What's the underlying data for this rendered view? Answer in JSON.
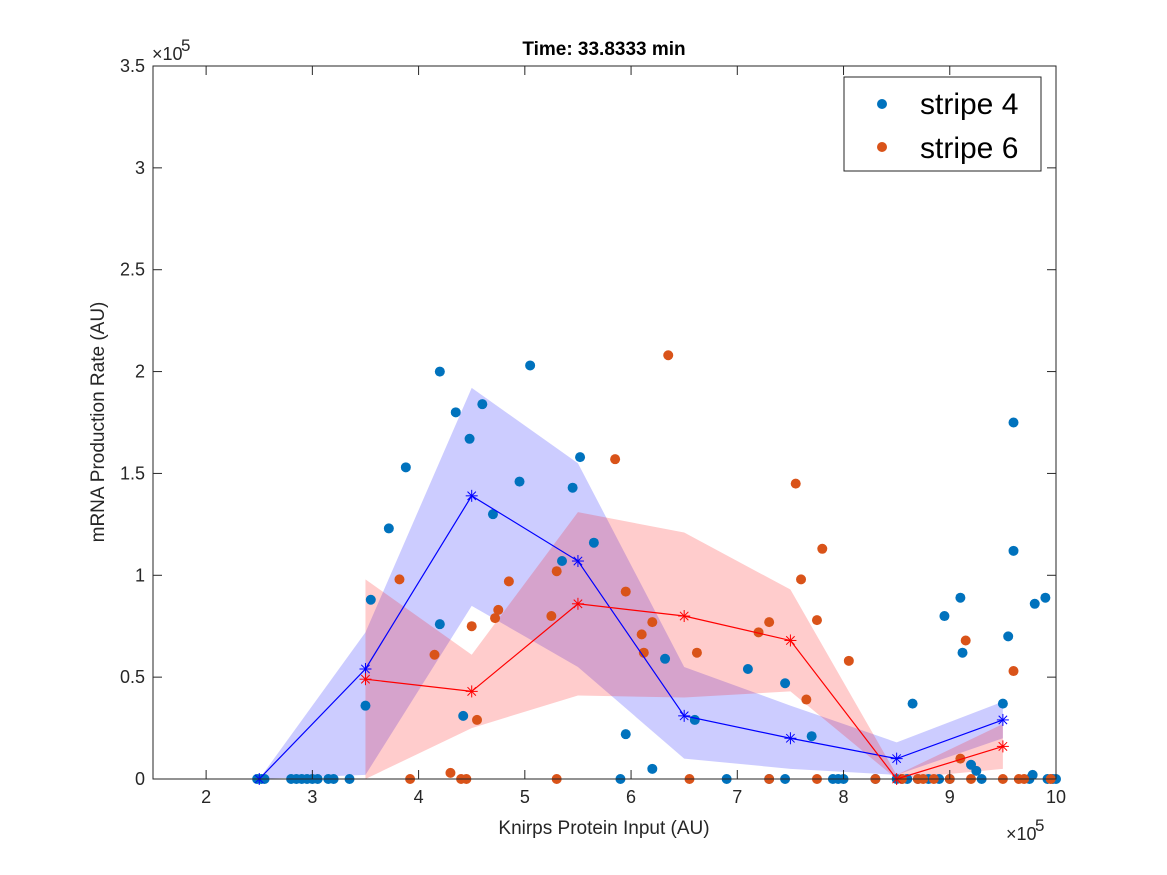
{
  "chart_data": {
    "type": "scatter",
    "title": "Time: 33.8333 min",
    "xlabel": "Knirps Protein Input (AU)",
    "ylabel": "mRNA Production Rate (AU)",
    "x_multiplier_label": "×10",
    "x_multiplier_exp": "5",
    "y_multiplier_label": "×10",
    "y_multiplier_exp": "5",
    "xlim": [
      1.5,
      10
    ],
    "ylim": [
      0,
      3.5
    ],
    "x_ticks": [
      2,
      3,
      4,
      5,
      6,
      7,
      8,
      9,
      10
    ],
    "x_tick_labels": [
      "2",
      "3",
      "4",
      "5",
      "6",
      "7",
      "8",
      "9",
      "10"
    ],
    "y_ticks": [
      0,
      0.5,
      1,
      1.5,
      2,
      2.5,
      3,
      3.5
    ],
    "y_tick_labels": [
      "0",
      "0.5",
      "1",
      "1.5",
      "2",
      "2.5",
      "3",
      "3.5"
    ],
    "legend": {
      "position": "top-right",
      "entries": [
        "stripe 4",
        "stripe 6"
      ]
    },
    "grid": false,
    "series": [
      {
        "name": "stripe 4",
        "color": "#0072BD",
        "points": [
          [
            2.48,
            0
          ],
          [
            2.52,
            0
          ],
          [
            2.55,
            0
          ],
          [
            2.8,
            0
          ],
          [
            2.85,
            0
          ],
          [
            2.9,
            0
          ],
          [
            2.95,
            0
          ],
          [
            3.0,
            0
          ],
          [
            3.05,
            0
          ],
          [
            3.15,
            0
          ],
          [
            3.2,
            0
          ],
          [
            3.35,
            0
          ],
          [
            3.5,
            0.36
          ],
          [
            3.55,
            0.88
          ],
          [
            3.72,
            1.23
          ],
          [
            3.88,
            1.53
          ],
          [
            4.2,
            2.0
          ],
          [
            4.2,
            0.76
          ],
          [
            4.35,
            1.8
          ],
          [
            4.42,
            0.31
          ],
          [
            4.48,
            1.67
          ],
          [
            4.6,
            1.84
          ],
          [
            4.7,
            1.3
          ],
          [
            4.95,
            1.46
          ],
          [
            5.05,
            2.03
          ],
          [
            5.45,
            1.43
          ],
          [
            5.52,
            1.58
          ],
          [
            5.65,
            1.16
          ],
          [
            5.35,
            1.07
          ],
          [
            5.95,
            0.22
          ],
          [
            5.9,
            0
          ],
          [
            6.2,
            0.05
          ],
          [
            6.32,
            0.59
          ],
          [
            6.6,
            0.29
          ],
          [
            6.9,
            0
          ],
          [
            7.1,
            0.54
          ],
          [
            7.3,
            0
          ],
          [
            7.45,
            0
          ],
          [
            7.45,
            0.47
          ],
          [
            7.7,
            0.21
          ],
          [
            7.9,
            0
          ],
          [
            7.95,
            0
          ],
          [
            8.0,
            0
          ],
          [
            8.3,
            0
          ],
          [
            8.5,
            0
          ],
          [
            8.55,
            0
          ],
          [
            8.6,
            0
          ],
          [
            8.65,
            0.37
          ],
          [
            8.7,
            0
          ],
          [
            8.8,
            0
          ],
          [
            8.9,
            0
          ],
          [
            8.95,
            0.8
          ],
          [
            9.0,
            0
          ],
          [
            9.1,
            0.89
          ],
          [
            9.12,
            0.62
          ],
          [
            9.2,
            0.07
          ],
          [
            9.25,
            0.04
          ],
          [
            9.3,
            0
          ],
          [
            9.5,
            0.37
          ],
          [
            9.55,
            0.7
          ],
          [
            9.6,
            1.75
          ],
          [
            9.6,
            1.12
          ],
          [
            9.75,
            0
          ],
          [
            9.8,
            0.86
          ],
          [
            9.9,
            0.89
          ],
          [
            9.78,
            0.02
          ],
          [
            9.92,
            0
          ],
          [
            9.97,
            0
          ],
          [
            10.0,
            0
          ]
        ],
        "mean_x": [
          2.5,
          3.5,
          4.5,
          5.5,
          6.5,
          7.5,
          8.5,
          9.5
        ],
        "mean_y": [
          0,
          0.54,
          1.39,
          1.07,
          0.31,
          0.2,
          0.1,
          0.29
        ],
        "band_lower": [
          0,
          0.02,
          0.85,
          0.55,
          0.1,
          0.05,
          0.02,
          0.2
        ],
        "band_upper": [
          0,
          0.72,
          1.92,
          1.55,
          0.55,
          0.36,
          0.18,
          0.38
        ]
      },
      {
        "name": "stripe 6",
        "color": "#D95319",
        "points": [
          [
            3.82,
            0.98
          ],
          [
            3.92,
            0
          ],
          [
            4.15,
            0.61
          ],
          [
            4.3,
            0.03
          ],
          [
            4.4,
            0
          ],
          [
            4.45,
            0
          ],
          [
            4.5,
            0.75
          ],
          [
            4.55,
            0.29
          ],
          [
            4.72,
            0.79
          ],
          [
            4.75,
            0.83
          ],
          [
            4.85,
            0.97
          ],
          [
            5.25,
            0.8
          ],
          [
            5.3,
            1.02
          ],
          [
            5.3,
            0
          ],
          [
            5.85,
            1.57
          ],
          [
            5.95,
            0.92
          ],
          [
            6.1,
            0.71
          ],
          [
            6.12,
            0.62
          ],
          [
            6.2,
            0.77
          ],
          [
            6.35,
            2.08
          ],
          [
            6.55,
            0
          ],
          [
            6.62,
            0.62
          ],
          [
            7.2,
            0.72
          ],
          [
            7.3,
            0.77
          ],
          [
            7.3,
            0
          ],
          [
            7.55,
            1.45
          ],
          [
            7.6,
            0.98
          ],
          [
            7.65,
            0.39
          ],
          [
            7.75,
            0.78
          ],
          [
            7.8,
            1.13
          ],
          [
            7.75,
            0
          ],
          [
            8.05,
            0.58
          ],
          [
            8.3,
            0
          ],
          [
            8.55,
            0
          ],
          [
            8.7,
            0
          ],
          [
            8.75,
            0
          ],
          [
            8.85,
            0
          ],
          [
            9.1,
            0.1
          ],
          [
            9.0,
            0
          ],
          [
            9.15,
            0.68
          ],
          [
            9.2,
            0
          ],
          [
            9.5,
            0
          ],
          [
            9.6,
            0.53
          ],
          [
            9.65,
            0
          ],
          [
            9.7,
            0
          ],
          [
            9.95,
            0
          ]
        ],
        "mean_x": [
          3.5,
          4.5,
          5.5,
          6.5,
          7.5,
          8.5,
          9.5
        ],
        "mean_y": [
          0.49,
          0.43,
          0.86,
          0.8,
          0.68,
          0,
          0.16
        ],
        "band_lower": [
          0,
          0.25,
          0.41,
          0.4,
          0.43,
          0,
          0.05
        ],
        "band_upper": [
          0.98,
          0.61,
          1.31,
          1.21,
          0.93,
          0.02,
          0.27
        ]
      }
    ]
  },
  "colors": {
    "stripe4_marker": "#0072BD",
    "stripe6_marker": "#D95319",
    "stripe4_line": "#0000FF",
    "stripe6_line": "#FF0000",
    "stripe4_band": "#0000FF",
    "stripe6_band": "#FF0000",
    "axis": "#262626"
  }
}
